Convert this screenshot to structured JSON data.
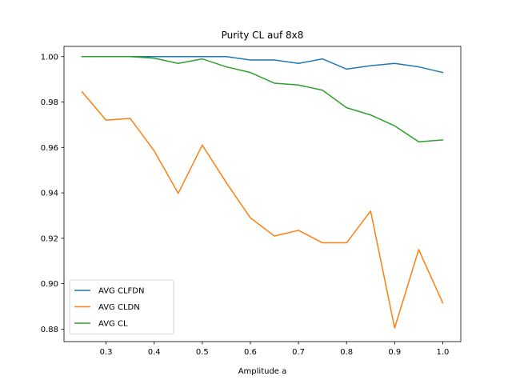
{
  "chart_data": {
    "type": "line",
    "title": "Purity CL auf 8x8",
    "xlabel": "Amplitude a",
    "ylabel": "",
    "xlim": [
      0.2125,
      1.0375
    ],
    "ylim": [
      0.8745,
      1.0045
    ],
    "x_ticks": [
      "0.3",
      "0.4",
      "0.5",
      "0.6",
      "0.7",
      "0.8",
      "0.9",
      "1.0"
    ],
    "y_ticks": [
      "0.88",
      "0.90",
      "0.92",
      "0.94",
      "0.96",
      "0.98",
      "1.00"
    ],
    "grid": false,
    "legend_position": "lower-left",
    "x": [
      0.25,
      0.3,
      0.35,
      0.4,
      0.45,
      0.5,
      0.55,
      0.6,
      0.65,
      0.7,
      0.75,
      0.8,
      0.85,
      0.9,
      0.95,
      1.0
    ],
    "series": [
      {
        "name": "AVG CLFDN",
        "color": "#1f77b4",
        "values": [
          1.0,
          1.0,
          1.0,
          1.0,
          1.0,
          1.0,
          1.0,
          0.9985,
          0.9985,
          0.997,
          0.999,
          0.9945,
          0.996,
          0.997,
          0.9955,
          0.993
        ]
      },
      {
        "name": "AVG CLDN",
        "color": "#ff7f0e",
        "values": [
          0.9845,
          0.972,
          0.9728,
          0.9585,
          0.9398,
          0.961,
          0.9445,
          0.929,
          0.921,
          0.9235,
          0.918,
          0.918,
          0.932,
          0.8805,
          0.915,
          0.8915
        ]
      },
      {
        "name": "AVG CL",
        "color": "#2ca02c",
        "values": [
          1.0,
          1.0,
          1.0,
          0.9993,
          0.997,
          0.999,
          0.9955,
          0.993,
          0.9883,
          0.9875,
          0.9852,
          0.9775,
          0.9743,
          0.9695,
          0.9625,
          0.9633
        ]
      }
    ]
  }
}
